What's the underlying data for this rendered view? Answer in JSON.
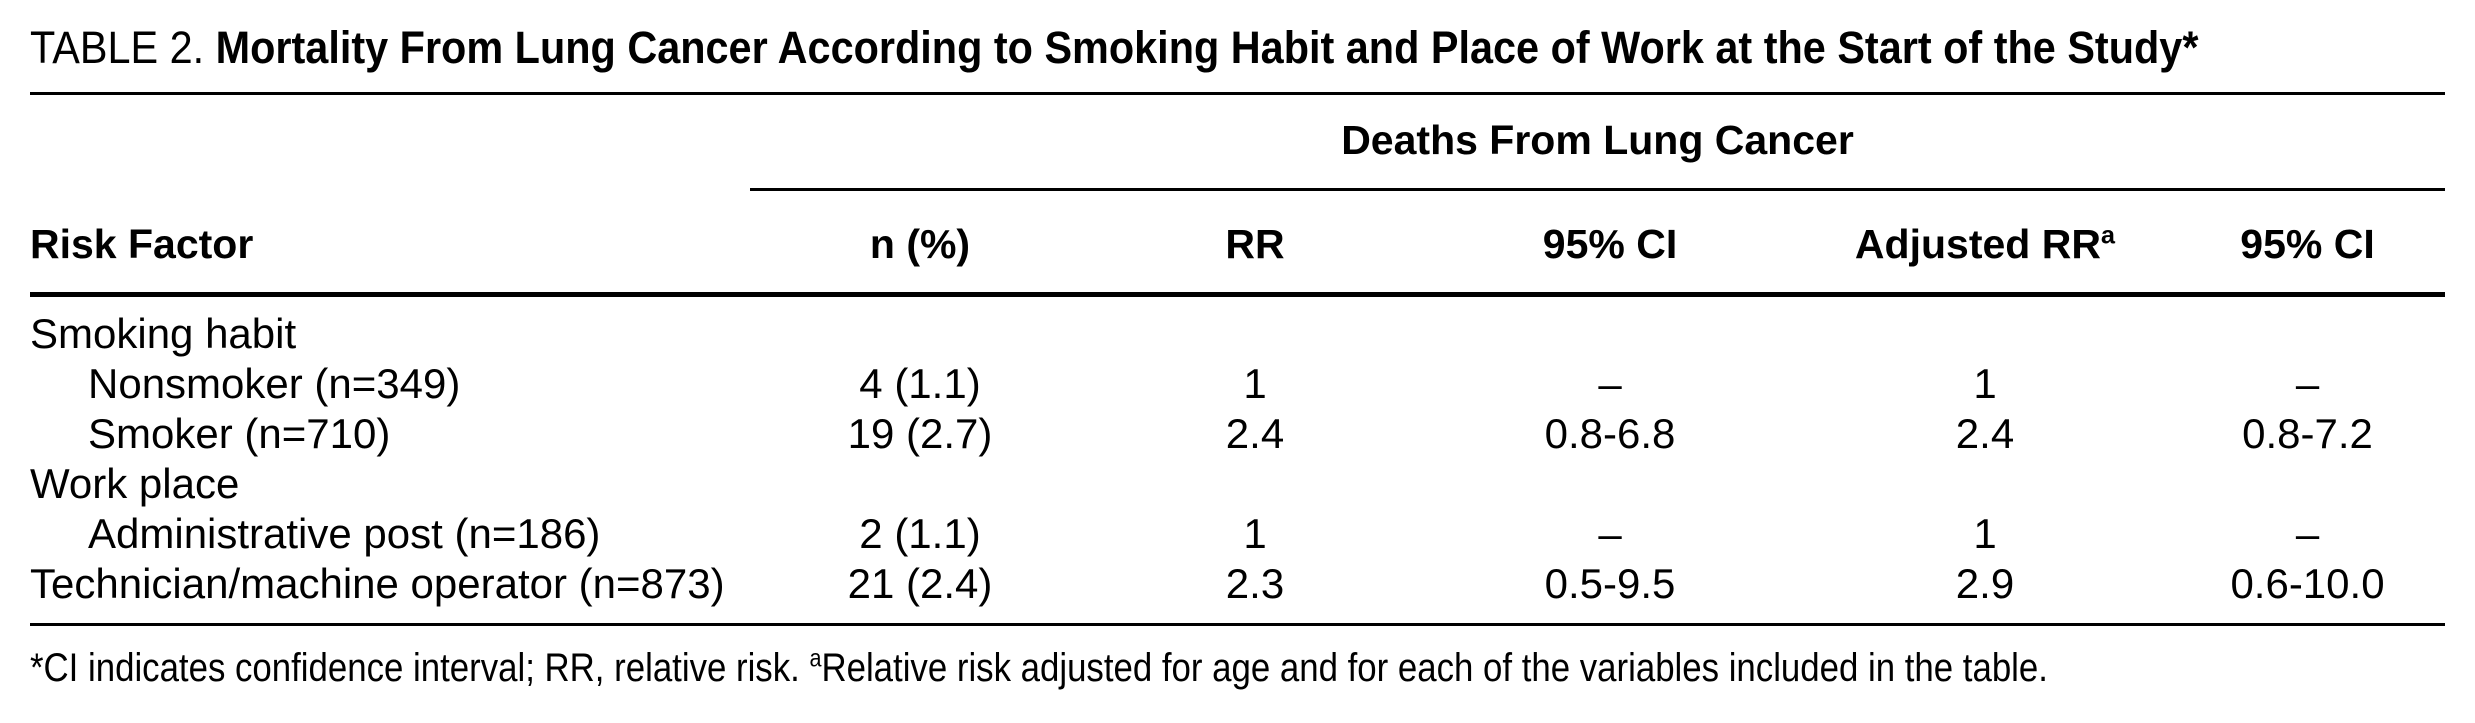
{
  "colors": {
    "text": "#000000",
    "background": "#ffffff",
    "rule": "#000000"
  },
  "title": {
    "prefix": "TABLE 2.",
    "text": "Mortality From Lung Cancer According to Smoking Habit and Place of Work at the Start of the Study*"
  },
  "table": {
    "span_header": "Deaths From Lung Cancer",
    "columns": [
      "Risk Factor",
      "n (%)",
      "RR",
      "95% CI",
      "Adjusted RR",
      "95% CI"
    ],
    "adjusted_rr_sup": "a",
    "rows": [
      {
        "label": "Smoking habit",
        "indent": false,
        "cells": [
          "",
          "",
          "",
          "",
          ""
        ]
      },
      {
        "label": "Nonsmoker (n=349)",
        "indent": true,
        "cells": [
          "4 (1.1)",
          "1",
          "–",
          "1",
          "–"
        ]
      },
      {
        "label": "Smoker (n=710)",
        "indent": true,
        "cells": [
          "19 (2.7)",
          "2.4",
          "0.8-6.8",
          "2.4",
          "0.8-7.2"
        ]
      },
      {
        "label": "Work place",
        "indent": false,
        "cells": [
          "",
          "",
          "",
          "",
          ""
        ]
      },
      {
        "label": "Administrative post (n=186)",
        "indent": true,
        "cells": [
          "2 (1.1)",
          "1",
          "–",
          "1",
          "–"
        ]
      },
      {
        "label": "Technician/machine operator (n=873)",
        "indent": false,
        "cells": [
          "21 (2.4)",
          "2.3",
          "0.5-9.5",
          "2.9",
          "0.6-10.0"
        ]
      }
    ]
  },
  "footnote": {
    "part1": "*CI indicates confidence interval; RR, relative risk. ",
    "sup": "a",
    "part2": "Relative risk adjusted for age and for each of the variables included in the table."
  }
}
